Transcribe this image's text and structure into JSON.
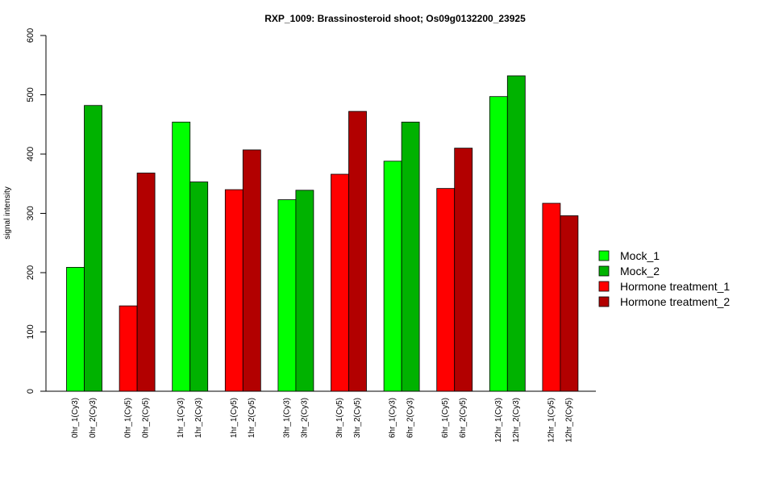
{
  "chart_data": {
    "type": "bar",
    "title": "RXP_1009: Brassinosteroid shoot; Os09g0132200_23925",
    "xlabel": "",
    "ylabel": "signal intensity",
    "ylim": [
      0,
      600
    ],
    "yticks": [
      0,
      100,
      200,
      300,
      400,
      500,
      600
    ],
    "grid": false,
    "legend_position": "right",
    "series": [
      {
        "name": "Mock_1",
        "color": "#00FF00"
      },
      {
        "name": "Mock_2",
        "color": "#00B200"
      },
      {
        "name": "Hormone treatment_1",
        "color": "#FF0000"
      },
      {
        "name": "Hormone treatment_2",
        "color": "#B20000"
      }
    ],
    "groups": [
      {
        "bars": [
          {
            "label": "0hr_1(Cy3)",
            "value": 209,
            "series": 0
          },
          {
            "label": "0hr_2(Cy3)",
            "value": 482,
            "series": 1
          }
        ]
      },
      {
        "bars": [
          {
            "label": "0hr_1(Cy5)",
            "value": 144,
            "series": 2
          },
          {
            "label": "0hr_2(Cy5)",
            "value": 368,
            "series": 3
          }
        ]
      },
      {
        "bars": [
          {
            "label": "1hr_1(Cy3)",
            "value": 454,
            "series": 0
          },
          {
            "label": "1hr_2(Cy3)",
            "value": 353,
            "series": 1
          }
        ]
      },
      {
        "bars": [
          {
            "label": "1hr_1(Cy5)",
            "value": 340,
            "series": 2
          },
          {
            "label": "1hr_2(Cy5)",
            "value": 407,
            "series": 3
          }
        ]
      },
      {
        "bars": [
          {
            "label": "3hr_1(Cy3)",
            "value": 323,
            "series": 0
          },
          {
            "label": "3hr_2(Cy3)",
            "value": 339,
            "series": 1
          }
        ]
      },
      {
        "bars": [
          {
            "label": "3hr_1(Cy5)",
            "value": 366,
            "series": 2
          },
          {
            "label": "3hr_2(Cy5)",
            "value": 472,
            "series": 3
          }
        ]
      },
      {
        "bars": [
          {
            "label": "6hr_1(Cy3)",
            "value": 388,
            "series": 0
          },
          {
            "label": "6hr_2(Cy3)",
            "value": 454,
            "series": 1
          }
        ]
      },
      {
        "bars": [
          {
            "label": "6hr_1(Cy5)",
            "value": 342,
            "series": 2
          },
          {
            "label": "6hr_2(Cy5)",
            "value": 410,
            "series": 3
          }
        ]
      },
      {
        "bars": [
          {
            "label": "12hr_1(Cy3)",
            "value": 497,
            "series": 0
          },
          {
            "label": "12hr_2(Cy3)",
            "value": 532,
            "series": 1
          }
        ]
      },
      {
        "bars": [
          {
            "label": "12hr_1(Cy5)",
            "value": 317,
            "series": 2
          },
          {
            "label": "12hr_2(Cy5)",
            "value": 296,
            "series": 3
          }
        ]
      }
    ]
  }
}
